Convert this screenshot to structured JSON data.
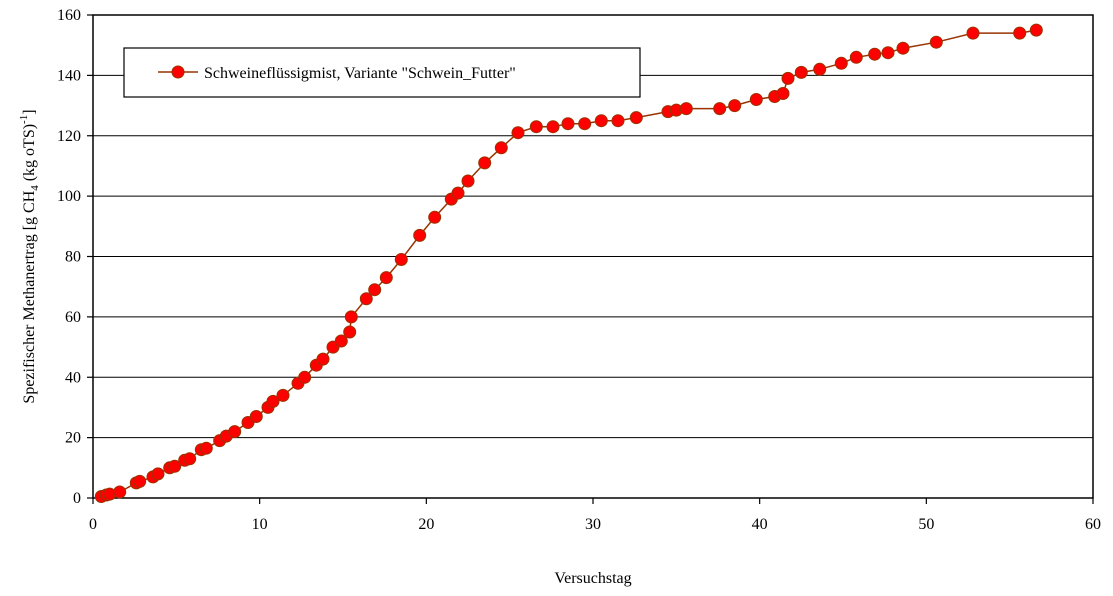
{
  "chart_data": {
    "type": "line",
    "title": "",
    "xlabel": "Versuchstag",
    "ylabel": "Spezifischer Methanertrag [g CH4 (kg oTS)-1]",
    "ylabel_parts": {
      "main": "Spezifischer Methanertrag [g CH",
      "sub": "4",
      "mid": " (kg oTS)",
      "sup": "-1",
      "end": "]"
    },
    "xlim": [
      0,
      60
    ],
    "ylim": [
      0,
      160
    ],
    "x_ticks": [
      0,
      10,
      20,
      30,
      40,
      50,
      60
    ],
    "y_ticks": [
      0,
      20,
      40,
      60,
      80,
      100,
      120,
      140,
      160
    ],
    "grid": "horizontal",
    "legend_position": "top-left",
    "line_color": "#993300",
    "marker_color": "#ff0000",
    "series": [
      {
        "name": "Schweineflüssigmist, Variante \"Schwein_Futter\"",
        "x": [
          0.5,
          0.8,
          1.0,
          1.6,
          2.6,
          2.8,
          3.6,
          3.9,
          4.6,
          4.9,
          5.5,
          5.8,
          6.5,
          6.8,
          7.6,
          8.0,
          8.5,
          9.3,
          9.8,
          10.5,
          10.8,
          11.4,
          12.3,
          12.7,
          13.4,
          13.8,
          14.4,
          14.9,
          15.4,
          15.5,
          16.4,
          16.9,
          17.6,
          18.5,
          19.6,
          20.5,
          21.5,
          21.9,
          22.5,
          23.5,
          24.5,
          25.5,
          26.6,
          27.6,
          28.5,
          29.5,
          30.5,
          31.5,
          32.6,
          34.5,
          35.0,
          35.6,
          37.6,
          38.5,
          39.8,
          40.9,
          41.4,
          41.7,
          42.5,
          43.6,
          44.9,
          45.8,
          46.9,
          47.7,
          48.6,
          50.6,
          52.8,
          55.6,
          56.6
        ],
        "y": [
          0.5,
          1.0,
          1.3,
          2.0,
          5.0,
          5.5,
          7.0,
          8.0,
          10.0,
          10.5,
          12.5,
          13.0,
          16.0,
          16.5,
          19.0,
          20.5,
          22.0,
          25.0,
          27.0,
          30.0,
          32.0,
          34.0,
          38.0,
          40.0,
          44.0,
          46.0,
          50.0,
          52.0,
          55.0,
          60.0,
          66.0,
          69.0,
          73.0,
          79.0,
          87.0,
          93.0,
          99.0,
          101.0,
          105.0,
          111.0,
          116.0,
          121.0,
          123.0,
          123.0,
          124.0,
          124.0,
          125.0,
          125.0,
          126.0,
          128.0,
          128.5,
          129.0,
          129.0,
          130.0,
          132.0,
          133.0,
          134.0,
          139.0,
          141.0,
          142.0,
          144.0,
          146.0,
          147.0,
          147.5,
          149.0,
          151.0,
          154.0,
          154.0,
          155.0
        ]
      }
    ]
  }
}
